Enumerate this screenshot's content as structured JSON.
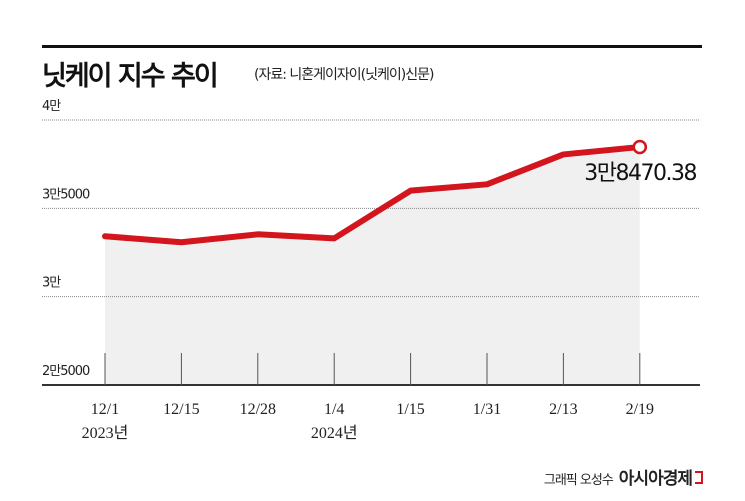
{
  "title": "닛케이 지수 추이",
  "source": "(자료: 니혼게이자이(닛케이)신문)",
  "credit": {
    "graphic": "그래픽 오성수",
    "brand": "아시아경제"
  },
  "colors": {
    "line": "#d3151d",
    "fill": "#f0f0f0",
    "grid": "#888888"
  },
  "chart_data": {
    "type": "line",
    "title": "닛케이 지수 추이",
    "categories": [
      "12/1",
      "12/15",
      "12/28",
      "1/4",
      "1/15",
      "1/31",
      "2/13",
      "2/19"
    ],
    "year_labels": [
      {
        "index": 0,
        "label": "2023년"
      },
      {
        "index": 3,
        "label": "2024년"
      }
    ],
    "values": [
      33420,
      33080,
      33530,
      33300,
      36000,
      36360,
      38050,
      38470.38
    ],
    "ylim": [
      25000,
      40000
    ],
    "yticks": [
      {
        "value": 40000,
        "label": "4만"
      },
      {
        "value": 35000,
        "label": "3만5000"
      },
      {
        "value": 30000,
        "label": "3만"
      },
      {
        "value": 25000,
        "label": "2만5000"
      }
    ],
    "annotation": "3만8470.38",
    "grid": true
  }
}
